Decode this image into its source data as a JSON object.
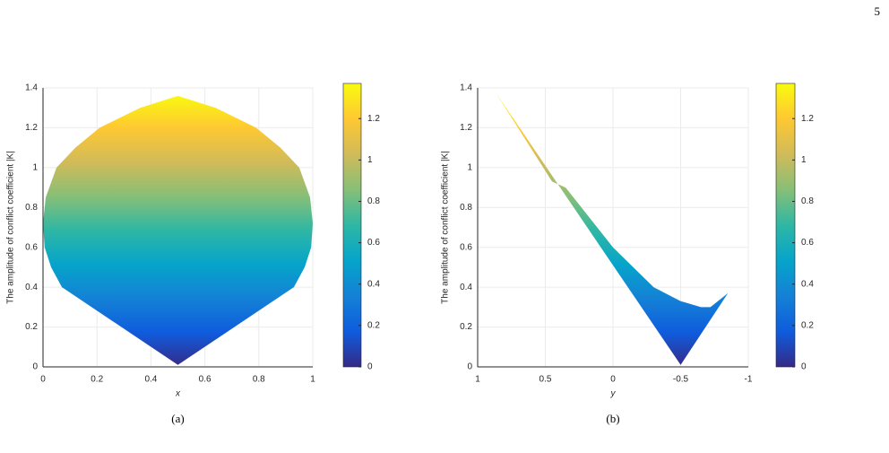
{
  "page_number": "5",
  "chart_data": [
    {
      "type": "area",
      "caption": "(a)",
      "xlabel": "x",
      "ylabel": "The amplitude of conflict coefficient |K|",
      "x": [
        0.5,
        0.93,
        0.97,
        0.994,
        1,
        0.99,
        0.95,
        0.88,
        0.79,
        0.64,
        0.5,
        0.36,
        0.21,
        0.12,
        0.05,
        0.01,
        0,
        0.006,
        0.03,
        0.07
      ],
      "values": [
        0.01,
        0.4,
        0.5,
        0.6,
        0.72,
        0.85,
        1.0,
        1.1,
        1.2,
        1.3,
        1.36,
        1.3,
        1.2,
        1.1,
        1.0,
        0.85,
        0.72,
        0.6,
        0.5,
        0.4
      ],
      "xlim": [
        0,
        1
      ],
      "xticks": [
        0,
        0.2,
        0.4,
        0.6,
        0.8,
        1
      ],
      "ylim": [
        0,
        1.4
      ],
      "yticks": [
        0,
        0.2,
        0.4,
        0.6,
        0.8,
        1,
        1.2,
        1.4
      ],
      "grid": true,
      "colormap": [
        "#352a87",
        "#0f5cdd",
        "#1481d6",
        "#06a4ca",
        "#2eb7a4",
        "#87bf77",
        "#d1bb59",
        "#fec832",
        "#f9fb0e"
      ],
      "colorbar": {
        "lim": [
          0,
          1.37
        ],
        "ticks": [
          0,
          0.2,
          0.4,
          0.6,
          0.8,
          1,
          1.2
        ]
      }
    },
    {
      "type": "area",
      "caption": "(b)",
      "xlabel": "y",
      "ylabel": "The amplitude of conflict coefficient |K|",
      "x": [
        0.87,
        0.45,
        0.35,
        0,
        -0.3,
        -0.5,
        -0.65,
        -0.72,
        -0.85,
        -0.5
      ],
      "values": [
        1.38,
        0.93,
        0.9,
        0.6,
        0.4,
        0.33,
        0.3,
        0.3,
        0.37,
        0.01
      ],
      "xlim": [
        1,
        -1
      ],
      "xticks": [
        1,
        0.5,
        0,
        -0.5,
        -1
      ],
      "ylim": [
        0,
        1.4
      ],
      "yticks": [
        0,
        0.2,
        0.4,
        0.6,
        0.8,
        1,
        1.2,
        1.4
      ],
      "grid": true,
      "colormap": [
        "#352a87",
        "#0f5cdd",
        "#1481d6",
        "#06a4ca",
        "#2eb7a4",
        "#87bf77",
        "#d1bb59",
        "#fec832",
        "#f9fb0e"
      ],
      "colorbar": {
        "lim": [
          0,
          1.37
        ],
        "ticks": [
          0,
          0.2,
          0.4,
          0.6,
          0.8,
          1,
          1.2
        ]
      }
    }
  ]
}
